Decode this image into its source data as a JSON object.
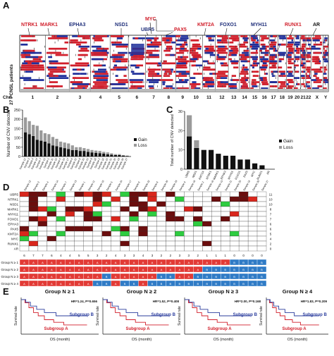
{
  "panels": {
    "a": "A",
    "b": "B",
    "c": "C",
    "d": "D",
    "e": "E"
  },
  "panelA": {
    "genes_red": [
      "NTRK1",
      "MARK1",
      "MYC",
      "KMT2A",
      "RUNX1",
      "PAX5"
    ],
    "genes_blue": [
      "EPHA3",
      "NSD1",
      "UBR5",
      "FOXO1",
      "MYH11"
    ],
    "gene_black": [
      "AR"
    ],
    "ylabel": "27 PCNSL patients",
    "chr_label": "Chr.",
    "chromosomes": [
      "1",
      "2",
      "3",
      "4",
      "5",
      "6",
      "7",
      "8",
      "9",
      "10",
      "11",
      "12",
      "13",
      "14",
      "15",
      "16",
      "17",
      "18",
      "19",
      "20",
      "21",
      "22",
      "X",
      "Y"
    ]
  },
  "chart_data": [
    {
      "type": "bar",
      "panel": "B",
      "ylabel": "Number of CNV detected",
      "ylim": [
        0,
        250
      ],
      "yticks": [
        0,
        50,
        100,
        150,
        200,
        250
      ],
      "legend": [
        "Gain",
        "Loss"
      ],
      "legend_position": "right",
      "categories": [
        "Sample 12",
        "Sample 3",
        "Sample 4",
        "Sample 14",
        "Sample 7",
        "Sample 13",
        "Sample 1",
        "Sample 11",
        "Sample 10",
        "Sample 5",
        "Sample 24",
        "Sample 17",
        "Sample 6",
        "Sample 22",
        "Sample 8",
        "Sample 20",
        "Sample 23",
        "Sample 9",
        "Sample 18",
        "Sample 2",
        "Sample 16",
        "Sample 15",
        "Sample 21",
        "Sample 25",
        "Sample 19",
        "Sample 26",
        "Sample 27"
      ],
      "series": [
        {
          "name": "Gain",
          "values": [
            130,
            120,
            110,
            90,
            85,
            80,
            70,
            60,
            55,
            50,
            45,
            40,
            35,
            35,
            30,
            30,
            25,
            22,
            20,
            18,
            15,
            12,
            10,
            8,
            8,
            5,
            3
          ]
        },
        {
          "name": "Loss",
          "values": [
            80,
            70,
            60,
            75,
            55,
            45,
            50,
            45,
            40,
            30,
            30,
            30,
            25,
            15,
            20,
            15,
            15,
            13,
            12,
            12,
            10,
            10,
            7,
            5,
            5,
            3,
            2
          ]
        }
      ]
    },
    {
      "type": "bar",
      "panel": "C",
      "ylabel": "Total number of CNV detected",
      "ylim": [
        0,
        30
      ],
      "yticks": [
        0,
        10,
        20,
        30
      ],
      "legend": [
        "Gain",
        "Loss"
      ],
      "legend_position": "right",
      "categories": [
        "UBR5",
        "NSD1",
        "KMT2A",
        "NTRK1",
        "MARK1",
        "EPHA3",
        "MYH11",
        "FOXO1",
        "PAX5",
        "MYC",
        "RUNX1",
        "AR"
      ],
      "series": [
        {
          "name": "Gain",
          "values": [
            17,
            11,
            10,
            10,
            8,
            7,
            7,
            5,
            5,
            3,
            2,
            0
          ]
        },
        {
          "name": "Loss",
          "values": [
            11,
            4,
            0,
            0,
            0,
            0,
            0,
            0,
            0,
            0,
            0,
            0
          ]
        }
      ]
    },
    {
      "type": "heatmap",
      "panel": "D",
      "columns": [
        "Sample 12",
        "Sample 3",
        "Sample 4",
        "Sample 14",
        "Sample 7",
        "Sample 13",
        "Sample 1",
        "Sample 11",
        "Sample 10",
        "Sample 5",
        "Sample 24",
        "Sample 17",
        "Sample 6",
        "Sample 22",
        "Sample 8",
        "Sample 20",
        "Sample 23",
        "Sample 9",
        "Sample 18",
        "Sample 2",
        "Sample 16",
        "Sample 15",
        "Sample 21",
        "Sample 25",
        "Sample 19",
        "Sample 26",
        "Sample 27"
      ],
      "rows": [
        "UBR5",
        "NTRK1",
        "NSD1",
        "MARK1",
        "MYH11",
        "FOXO1",
        "EPHA3",
        "PAX5",
        "KMT2A",
        "MYC",
        "RUNX1",
        "AR"
      ],
      "row_totals": [
        11,
        10,
        10,
        8,
        7,
        7,
        6,
        6,
        5,
        4,
        2,
        0
      ],
      "col_totals": [
        6,
        7,
        7,
        6,
        4,
        4,
        5,
        5,
        3,
        2,
        4,
        3,
        3,
        4,
        3,
        2,
        2,
        3,
        3,
        2,
        1,
        1,
        1,
        0,
        0,
        0,
        0
      ],
      "groups": [
        {
          "name": "Group N ≥ 1",
          "labels": [
            "A",
            "A",
            "A",
            "A",
            "A",
            "A",
            "A",
            "A",
            "A",
            "A",
            "A",
            "A",
            "A",
            "A",
            "A",
            "A",
            "A",
            "A",
            "A",
            "A",
            "A",
            "A",
            "A",
            "B",
            "B",
            "B",
            "B"
          ]
        },
        {
          "name": "Group N ≥ 2",
          "labels": [
            "A",
            "A",
            "A",
            "A",
            "A",
            "A",
            "A",
            "A",
            "A",
            "A",
            "A",
            "A",
            "A",
            "A",
            "A",
            "A",
            "A",
            "A",
            "A",
            "A",
            "B",
            "B",
            "B",
            "B",
            "B",
            "B",
            "B"
          ]
        },
        {
          "name": "Group N ≥ 3",
          "labels": [
            "A",
            "A",
            "A",
            "A",
            "A",
            "A",
            "A",
            "A",
            "A",
            "B",
            "A",
            "A",
            "A",
            "A",
            "A",
            "B",
            "B",
            "A",
            "A",
            "B",
            "B",
            "B",
            "B",
            "B",
            "B",
            "B",
            "B"
          ]
        },
        {
          "name": "Group N ≥ 4",
          "labels": [
            "A",
            "A",
            "A",
            "A",
            "A",
            "A",
            "A",
            "A",
            "B",
            "B",
            "A",
            "B",
            "B",
            "A",
            "B",
            "B",
            "B",
            "B",
            "B",
            "B",
            "B",
            "B",
            "B",
            "B",
            "B",
            "B",
            "B"
          ]
        }
      ]
    },
    {
      "type": "line",
      "panel": "E",
      "plots": [
        {
          "title": "Group N ≥ 1",
          "stats": "HR=1.24, P=0.656"
        },
        {
          "title": "Group N ≥ 2",
          "stats": "HR=1.52, P=0.408"
        },
        {
          "title": "Group N ≥ 3",
          "stats": "HR=2.00, P=0.168"
        },
        {
          "title": "Group N ≥ 4",
          "stats": "HR=1.83, P=0.209"
        }
      ],
      "xlabel": "OS (month)",
      "ylabel": "Survival rate",
      "series": [
        {
          "name": "Subgroup A"
        },
        {
          "name": "Subgroup B"
        }
      ],
      "colors": {
        "A": "#d11f2b",
        "B": "#2c3e9e"
      }
    }
  ],
  "colors": {
    "gain_dark": "#111111",
    "loss_gray": "#9a9a9a",
    "cnv_red": "#d11f2b",
    "cnv_blue": "#1f2f9a",
    "heat_dark": "#6b0d0d",
    "heat_red": "#d9261c",
    "heat_green": "#2ecc40",
    "group_a": "#e23a35",
    "group_b": "#2f7bc6"
  }
}
